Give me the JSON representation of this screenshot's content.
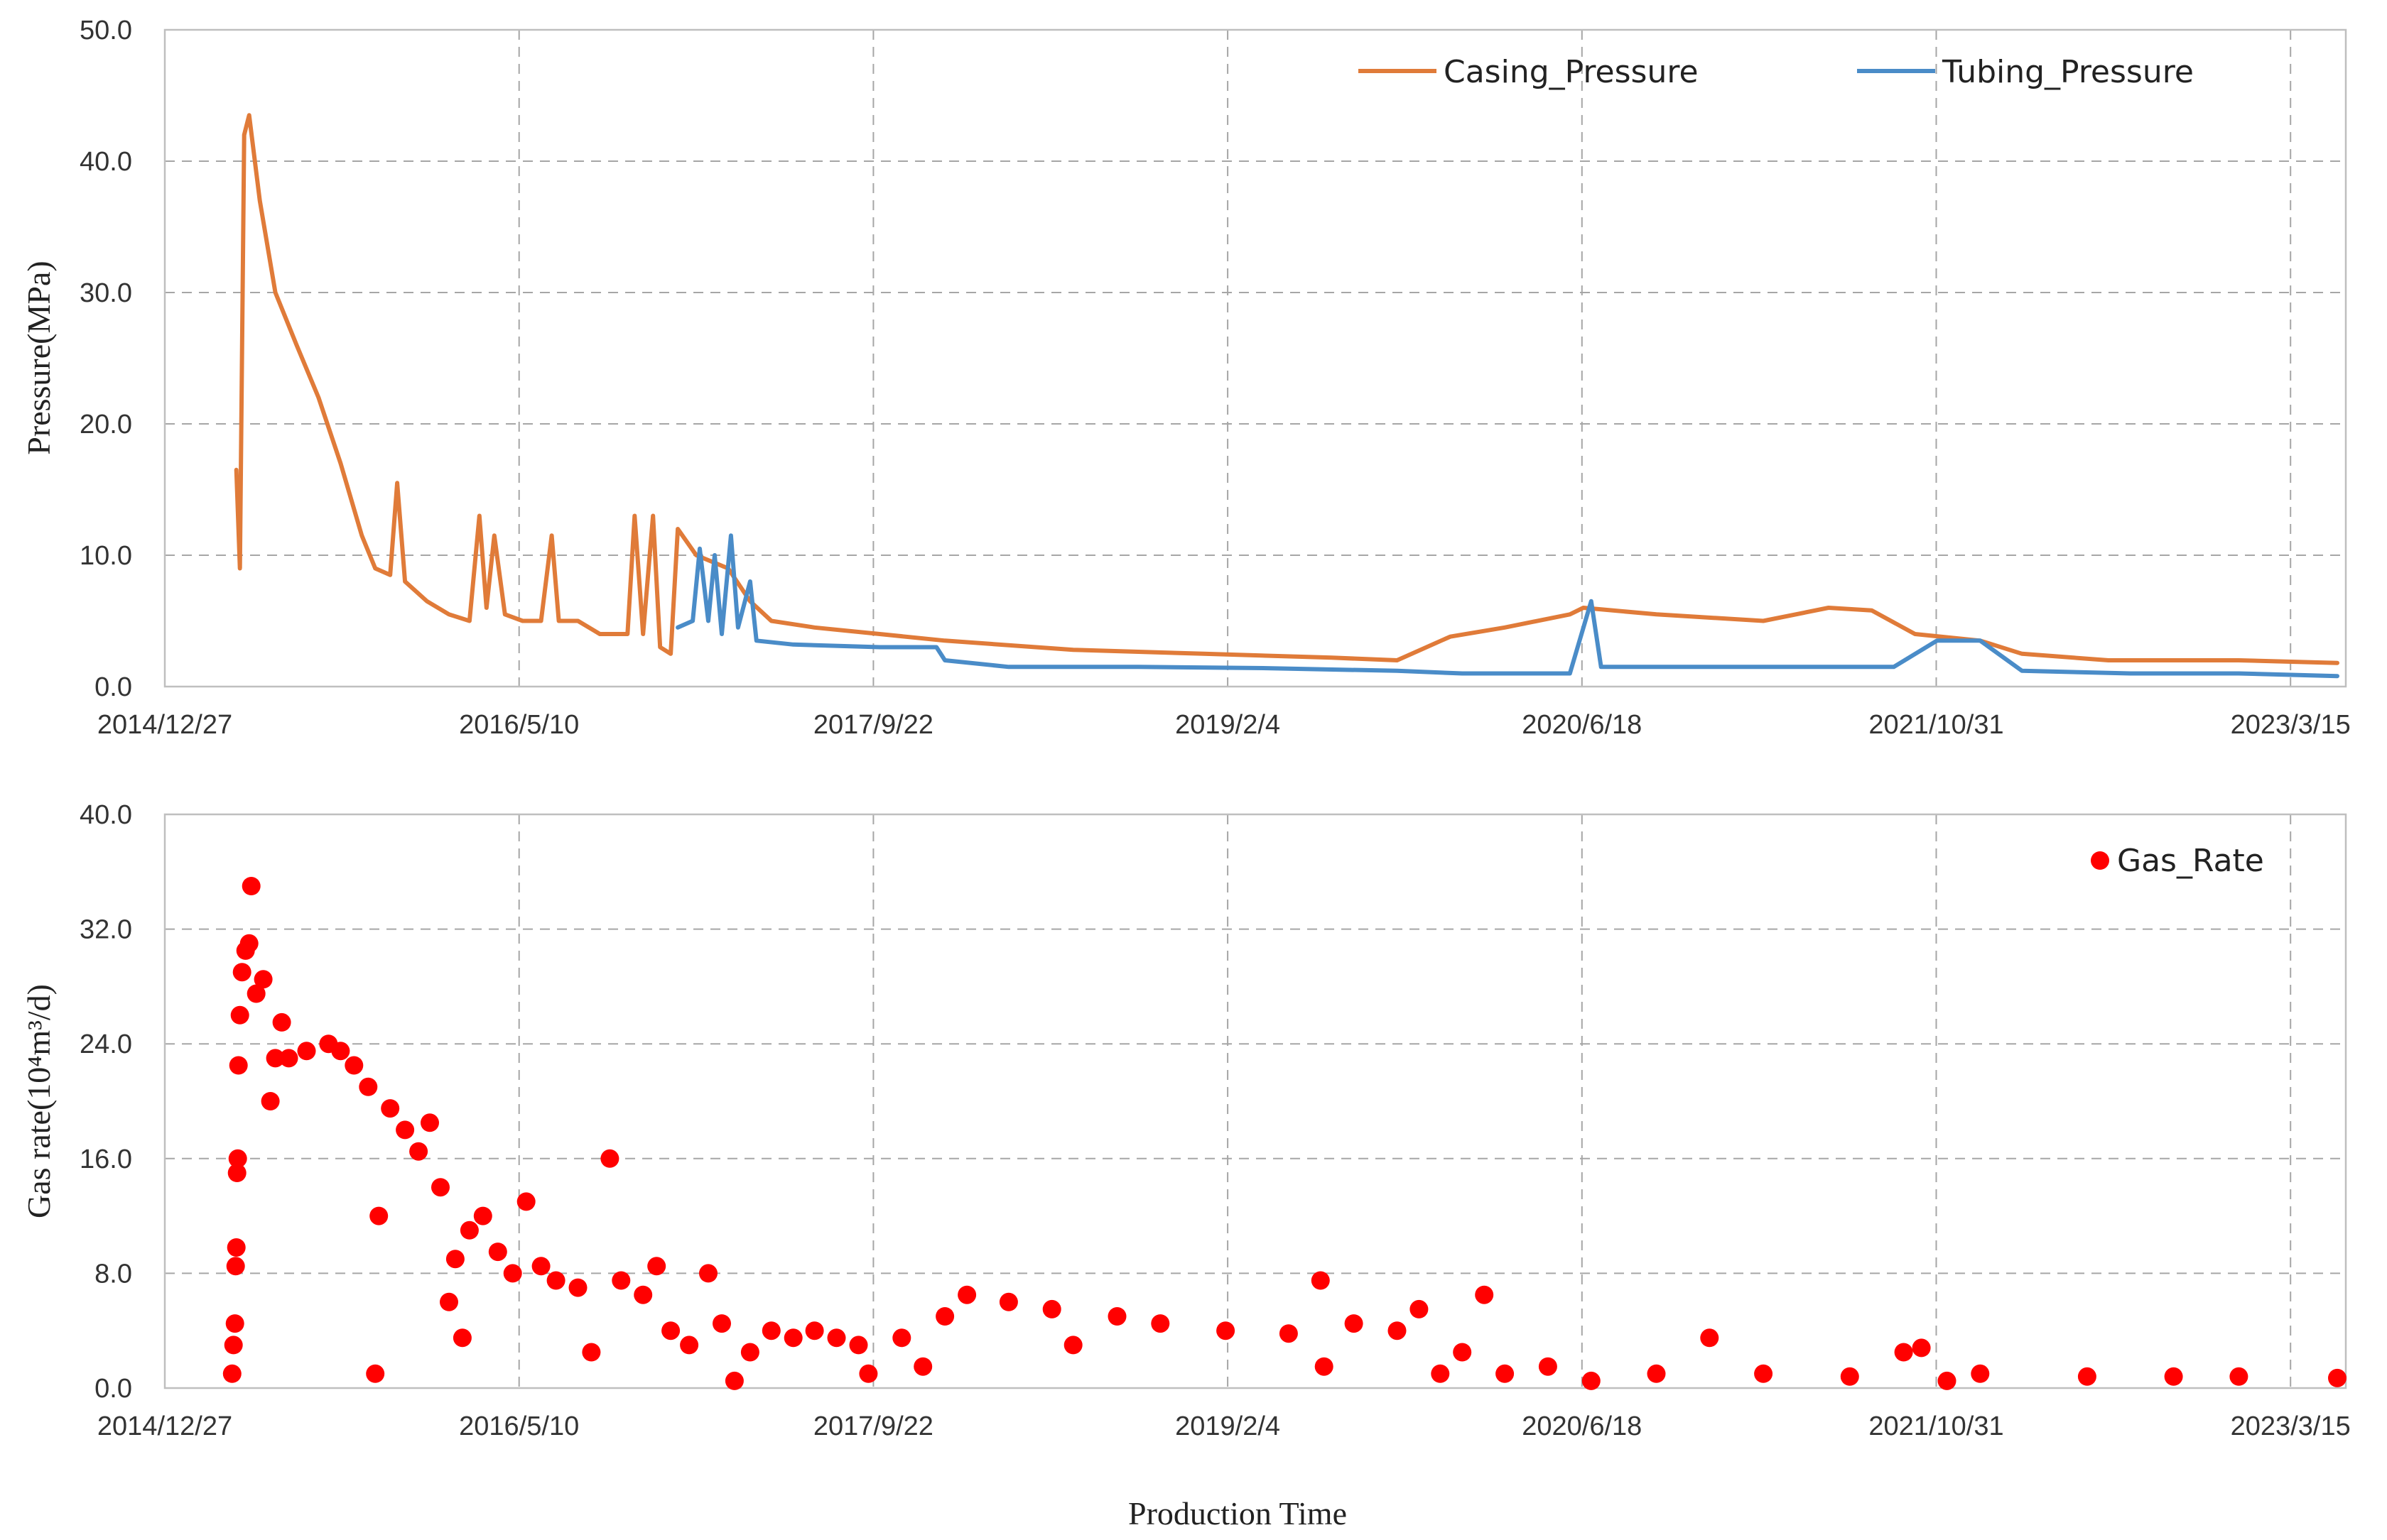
{
  "chart_data": [
    {
      "type": "line",
      "ylabel": "Pressure(MPa)",
      "ylim": [
        0,
        50
      ],
      "y_ticks": [
        "0.0",
        "10.0",
        "20.0",
        "30.0",
        "40.0",
        "50.0"
      ],
      "x_tick_labels": [
        "2014/12/27",
        "2016/5/10",
        "2017/9/22",
        "2019/2/4",
        "2020/6/18",
        "2021/10/31",
        "2023/3/15"
      ],
      "xlim": [
        "2014-12-27",
        "2023-06-01"
      ],
      "grid": true,
      "legend_position": "top-right",
      "series": [
        {
          "name": "Casing_Pressure",
          "color": "#E07B39",
          "points": [
            [
              "2015-04-07",
              16.5
            ],
            [
              "2015-04-12",
              9.0
            ],
            [
              "2015-04-18",
              42.0
            ],
            [
              "2015-04-25",
              43.5
            ],
            [
              "2015-05-10",
              37.0
            ],
            [
              "2015-06-01",
              30.0
            ],
            [
              "2015-07-01",
              26.0
            ],
            [
              "2015-08-01",
              22.0
            ],
            [
              "2015-09-01",
              17.0
            ],
            [
              "2015-10-01",
              11.5
            ],
            [
              "2015-10-20",
              9.0
            ],
            [
              "2015-11-10",
              8.5
            ],
            [
              "2015-11-20",
              15.5
            ],
            [
              "2015-12-01",
              8.0
            ],
            [
              "2016-01-01",
              6.5
            ],
            [
              "2016-02-01",
              5.5
            ],
            [
              "2016-03-01",
              5.0
            ],
            [
              "2016-03-15",
              13.0
            ],
            [
              "2016-03-25",
              6.0
            ],
            [
              "2016-04-05",
              11.5
            ],
            [
              "2016-04-20",
              5.5
            ],
            [
              "2016-05-15",
              5.0
            ],
            [
              "2016-06-10",
              5.0
            ],
            [
              "2016-06-25",
              11.5
            ],
            [
              "2016-07-05",
              5.0
            ],
            [
              "2016-08-01",
              5.0
            ],
            [
              "2016-09-01",
              4.0
            ],
            [
              "2016-10-10",
              4.0
            ],
            [
              "2016-10-20",
              13.0
            ],
            [
              "2016-11-01",
              4.0
            ],
            [
              "2016-11-15",
              13.0
            ],
            [
              "2016-11-25",
              3.0
            ],
            [
              "2016-12-10",
              2.5
            ],
            [
              "2016-12-20",
              12.0
            ],
            [
              "2017-01-15",
              10.0
            ],
            [
              "2017-03-01",
              9.0
            ],
            [
              "2017-04-01",
              6.5
            ],
            [
              "2017-05-01",
              5.0
            ],
            [
              "2017-07-01",
              4.5
            ],
            [
              "2017-10-01",
              4.0
            ],
            [
              "2018-01-01",
              3.5
            ],
            [
              "2018-07-01",
              2.8
            ],
            [
              "2019-01-01",
              2.5
            ],
            [
              "2019-07-01",
              2.2
            ],
            [
              "2019-10-01",
              2.0
            ],
            [
              "2019-12-15",
              3.8
            ],
            [
              "2020-03-01",
              4.5
            ],
            [
              "2020-06-01",
              5.5
            ],
            [
              "2020-06-20",
              6.0
            ],
            [
              "2020-10-01",
              5.5
            ],
            [
              "2021-03-01",
              5.0
            ],
            [
              "2021-06-01",
              6.0
            ],
            [
              "2021-08-01",
              5.8
            ],
            [
              "2021-10-01",
              4.0
            ],
            [
              "2022-01-01",
              3.5
            ],
            [
              "2022-03-01",
              2.5
            ],
            [
              "2022-07-01",
              2.0
            ],
            [
              "2023-01-01",
              2.0
            ],
            [
              "2023-05-20",
              1.8
            ]
          ]
        },
        {
          "name": "Tubing_Pressure",
          "color": "#4A8CC8",
          "points": [
            [
              "2016-12-20",
              4.5
            ],
            [
              "2017-01-10",
              5.0
            ],
            [
              "2017-01-20",
              10.5
            ],
            [
              "2017-02-01",
              5.0
            ],
            [
              "2017-02-10",
              10.0
            ],
            [
              "2017-02-20",
              4.0
            ],
            [
              "2017-03-05",
              11.5
            ],
            [
              "2017-03-15",
              4.5
            ],
            [
              "2017-04-01",
              8.0
            ],
            [
              "2017-04-10",
              3.5
            ],
            [
              "2017-06-01",
              3.2
            ],
            [
              "2017-10-01",
              3.0
            ],
            [
              "2017-12-20",
              3.0
            ],
            [
              "2018-01-01",
              2.0
            ],
            [
              "2018-04-01",
              1.5
            ],
            [
              "2018-10-01",
              1.5
            ],
            [
              "2019-04-01",
              1.4
            ],
            [
              "2019-10-01",
              1.2
            ],
            [
              "2020-01-01",
              1.0
            ],
            [
              "2020-06-01",
              1.0
            ],
            [
              "2020-07-01",
              6.5
            ],
            [
              "2020-07-15",
              1.5
            ],
            [
              "2020-10-01",
              1.5
            ],
            [
              "2021-03-01",
              1.5
            ],
            [
              "2021-09-01",
              1.5
            ],
            [
              "2021-11-01",
              3.5
            ],
            [
              "2022-01-01",
              3.5
            ],
            [
              "2022-03-01",
              1.2
            ],
            [
              "2022-08-01",
              1.0
            ],
            [
              "2023-01-01",
              1.0
            ],
            [
              "2023-05-20",
              0.8
            ]
          ]
        }
      ]
    },
    {
      "type": "scatter",
      "xlabel": "Production Time",
      "ylabel": "Gas rate(10⁴m³/d)",
      "ylim": [
        0,
        40
      ],
      "y_ticks": [
        "0.0",
        "8.0",
        "16.0",
        "24.0",
        "32.0",
        "40.0"
      ],
      "x_tick_labels": [
        "2014/12/27",
        "2016/5/10",
        "2017/9/22",
        "2019/2/4",
        "2020/6/18",
        "2021/10/31",
        "2023/3/15"
      ],
      "xlim": [
        "2014-12-27",
        "2023-06-01"
      ],
      "grid": true,
      "legend_position": "top-right",
      "series": [
        {
          "name": "Gas_Rate",
          "color": "#FF0000",
          "points": [
            [
              "2015-04-01",
              1.0
            ],
            [
              "2015-04-03",
              3.0
            ],
            [
              "2015-04-05",
              4.5
            ],
            [
              "2015-04-06",
              8.5
            ],
            [
              "2015-04-07",
              9.8
            ],
            [
              "2015-04-08",
              15.0
            ],
            [
              "2015-04-09",
              16.0
            ],
            [
              "2015-04-10",
              22.5
            ],
            [
              "2015-04-12",
              26.0
            ],
            [
              "2015-04-15",
              29.0
            ],
            [
              "2015-04-20",
              30.5
            ],
            [
              "2015-04-25",
              31.0
            ],
            [
              "2015-04-28",
              35.0
            ],
            [
              "2015-05-05",
              27.5
            ],
            [
              "2015-05-15",
              28.5
            ],
            [
              "2015-05-25",
              20.0
            ],
            [
              "2015-06-01",
              23.0
            ],
            [
              "2015-06-10",
              25.5
            ],
            [
              "2015-06-20",
              23.0
            ],
            [
              "2015-07-15",
              23.5
            ],
            [
              "2015-08-15",
              24.0
            ],
            [
              "2015-09-01",
              23.5
            ],
            [
              "2015-09-20",
              22.5
            ],
            [
              "2015-10-10",
              21.0
            ],
            [
              "2015-10-20",
              1.0
            ],
            [
              "2015-10-25",
              12.0
            ],
            [
              "2015-11-10",
              19.5
            ],
            [
              "2015-12-01",
              18.0
            ],
            [
              "2015-12-20",
              16.5
            ],
            [
              "2016-01-05",
              18.5
            ],
            [
              "2016-01-20",
              14.0
            ],
            [
              "2016-02-01",
              6.0
            ],
            [
              "2016-02-10",
              9.0
            ],
            [
              "2016-02-20",
              3.5
            ],
            [
              "2016-03-01",
              11.0
            ],
            [
              "2016-03-20",
              12.0
            ],
            [
              "2016-04-10",
              9.5
            ],
            [
              "2016-05-01",
              8.0
            ],
            [
              "2016-05-20",
              13.0
            ],
            [
              "2016-06-10",
              8.5
            ],
            [
              "2016-07-01",
              7.5
            ],
            [
              "2016-08-01",
              7.0
            ],
            [
              "2016-08-20",
              2.5
            ],
            [
              "2016-09-15",
              16.0
            ],
            [
              "2016-10-01",
              7.5
            ],
            [
              "2016-11-01",
              6.5
            ],
            [
              "2016-11-20",
              8.5
            ],
            [
              "2016-12-10",
              4.0
            ],
            [
              "2017-01-05",
              3.0
            ],
            [
              "2017-02-01",
              8.0
            ],
            [
              "2017-02-20",
              4.5
            ],
            [
              "2017-03-10",
              0.5
            ],
            [
              "2017-04-01",
              2.5
            ],
            [
              "2017-05-01",
              4.0
            ],
            [
              "2017-06-01",
              3.5
            ],
            [
              "2017-07-01",
              4.0
            ],
            [
              "2017-08-01",
              3.5
            ],
            [
              "2017-09-01",
              3.0
            ],
            [
              "2017-09-15",
              1.0
            ],
            [
              "2017-11-01",
              3.5
            ],
            [
              "2017-12-01",
              1.5
            ],
            [
              "2018-01-01",
              5.0
            ],
            [
              "2018-02-01",
              6.5
            ],
            [
              "2018-04-01",
              6.0
            ],
            [
              "2018-06-01",
              5.5
            ],
            [
              "2018-07-01",
              3.0
            ],
            [
              "2018-09-01",
              5.0
            ],
            [
              "2018-11-01",
              4.5
            ],
            [
              "2019-02-01",
              4.0
            ],
            [
              "2019-05-01",
              3.8
            ],
            [
              "2019-06-15",
              7.5
            ],
            [
              "2019-06-20",
              1.5
            ],
            [
              "2019-08-01",
              4.5
            ],
            [
              "2019-10-01",
              4.0
            ],
            [
              "2019-11-01",
              5.5
            ],
            [
              "2019-12-01",
              1.0
            ],
            [
              "2020-01-01",
              2.5
            ],
            [
              "2020-02-01",
              6.5
            ],
            [
              "2020-03-01",
              1.0
            ],
            [
              "2020-05-01",
              1.5
            ],
            [
              "2020-07-01",
              0.5
            ],
            [
              "2020-10-01",
              1.0
            ],
            [
              "2020-12-15",
              3.5
            ],
            [
              "2021-03-01",
              1.0
            ],
            [
              "2021-07-01",
              0.8
            ],
            [
              "2021-09-15",
              2.5
            ],
            [
              "2021-10-10",
              2.8
            ],
            [
              "2021-11-15",
              0.5
            ],
            [
              "2022-01-01",
              1.0
            ],
            [
              "2022-06-01",
              0.8
            ],
            [
              "2022-10-01",
              0.8
            ],
            [
              "2023-01-01",
              0.8
            ],
            [
              "2023-05-20",
              0.7
            ]
          ]
        }
      ]
    }
  ]
}
